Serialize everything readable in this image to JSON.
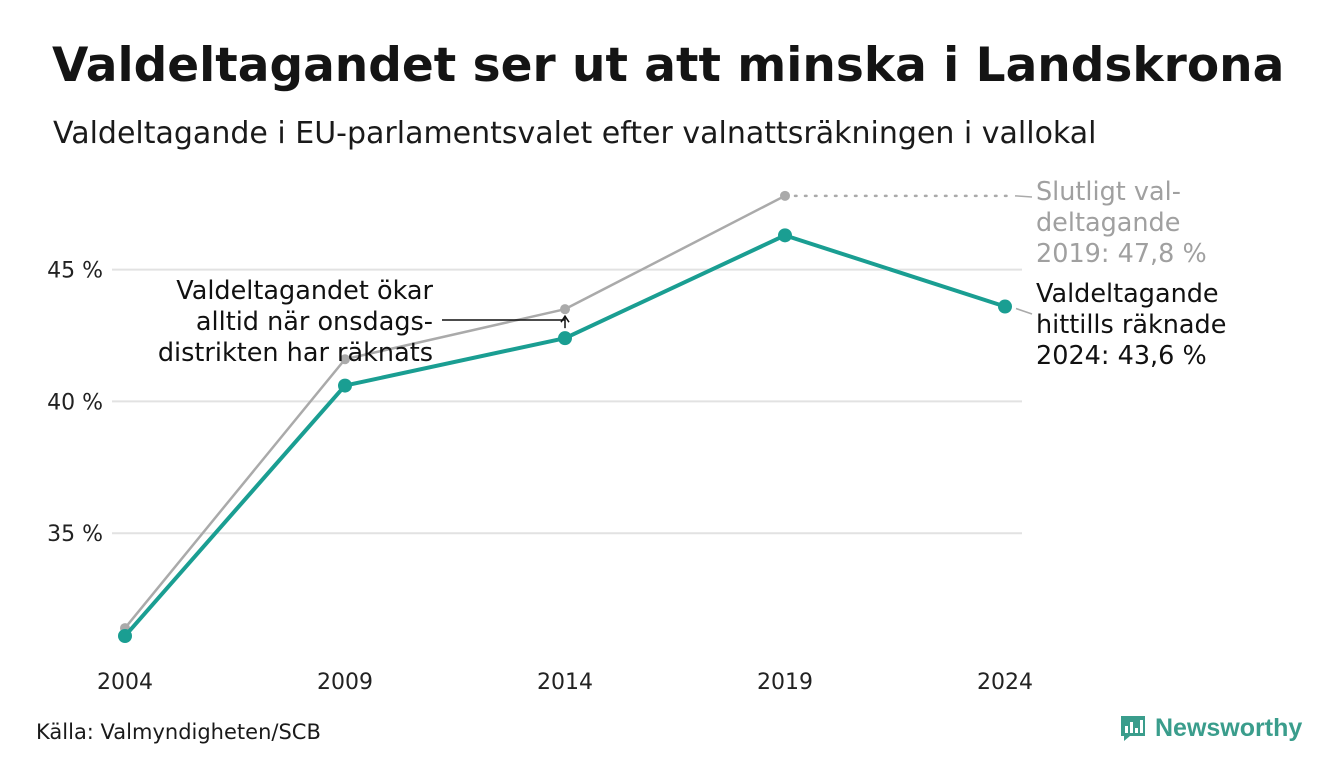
{
  "title": "Valdeltagandet ser ut att minska i Landskrona",
  "subtitle": "Valdeltagande i EU-parlamentsvalet efter valnattsräkningen i vallokal",
  "source": "Källa: Valmyndigheten/SCB",
  "brand": "Newsworthy",
  "chart_data": {
    "type": "line",
    "x": [
      2004,
      2009,
      2014,
      2019,
      2024
    ],
    "xticks": [
      "2004",
      "2009",
      "2014",
      "2019",
      "2024"
    ],
    "yticks": [
      {
        "value": 35,
        "label": "35 %"
      },
      {
        "value": 40,
        "label": "40 %"
      },
      {
        "value": 45,
        "label": "45 %"
      }
    ],
    "ylim": [
      30.0,
      48.4
    ],
    "grid": true,
    "series": [
      {
        "key": "final",
        "color": "#aaaaaa",
        "values": [
          31.4,
          41.6,
          43.5,
          47.8,
          null
        ]
      },
      {
        "key": "preliminary",
        "color": "#1a9e92",
        "values": [
          31.1,
          40.6,
          42.4,
          46.3,
          43.6
        ]
      }
    ],
    "annotations": [
      {
        "key": "final",
        "lines": [
          "Slutligt val-",
          "deltagande",
          "2019: 47,8 %"
        ],
        "color": "#a0a0a0"
      },
      {
        "key": "latest",
        "lines": [
          "Valdeltagande",
          "hittills räknade",
          "2024: 43,6 %"
        ],
        "color": "#111111"
      },
      {
        "key": "note",
        "lines": [
          "Valdeltagandet ökar",
          "alltid när onsdags-",
          "distrikten har räknats"
        ],
        "color": "#111111"
      }
    ]
  },
  "colors": {
    "accent": "#1a9e92",
    "final": "#aaaaaa",
    "grid": "#e2e2e2",
    "logo": "#3a9d8c"
  }
}
